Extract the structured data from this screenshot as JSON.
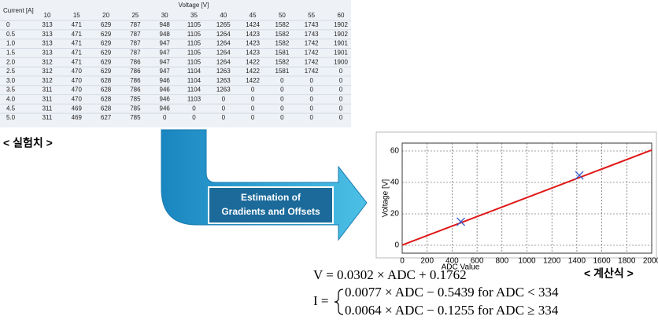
{
  "table": {
    "corner": "Current [A]",
    "group_header": "Voltage [V]",
    "columns": [
      "10",
      "15",
      "20",
      "25",
      "30",
      "35",
      "40",
      "45",
      "50",
      "55",
      "60"
    ],
    "rows": [
      [
        "0",
        "313",
        "471",
        "629",
        "787",
        "948",
        "1105",
        "1265",
        "1424",
        "1582",
        "1743",
        "1902"
      ],
      [
        "0.5",
        "313",
        "471",
        "629",
        "787",
        "948",
        "1105",
        "1264",
        "1423",
        "1582",
        "1743",
        "1902"
      ],
      [
        "1.0",
        "313",
        "471",
        "629",
        "787",
        "947",
        "1105",
        "1264",
        "1423",
        "1582",
        "1742",
        "1901"
      ],
      [
        "1.5",
        "313",
        "471",
        "629",
        "787",
        "947",
        "1105",
        "1264",
        "1423",
        "1581",
        "1742",
        "1901"
      ],
      [
        "2.0",
        "312",
        "471",
        "629",
        "786",
        "947",
        "1105",
        "1264",
        "1422",
        "1582",
        "1742",
        "1900"
      ],
      [
        "2.5",
        "312",
        "470",
        "629",
        "786",
        "947",
        "1104",
        "1263",
        "1422",
        "1581",
        "1742",
        "0"
      ],
      [
        "3.0",
        "312",
        "470",
        "628",
        "786",
        "946",
        "1104",
        "1263",
        "1422",
        "0",
        "0",
        "0"
      ],
      [
        "3.5",
        "311",
        "470",
        "628",
        "786",
        "946",
        "1104",
        "1263",
        "0",
        "0",
        "0",
        "0"
      ],
      [
        "4.0",
        "311",
        "470",
        "628",
        "785",
        "946",
        "1103",
        "0",
        "0",
        "0",
        "0",
        "0"
      ],
      [
        "4.5",
        "311",
        "469",
        "628",
        "785",
        "946",
        "0",
        "0",
        "0",
        "0",
        "0",
        "0"
      ],
      [
        "5.0",
        "311",
        "469",
        "627",
        "785",
        "0",
        "0",
        "0",
        "0",
        "0",
        "0",
        "0"
      ]
    ]
  },
  "table_caption": "< 실험치 >",
  "arrow_label": [
    "Estimation of",
    "Gradients and Offsets"
  ],
  "chart_data": {
    "type": "line",
    "xlabel": "ADC Value",
    "ylabel": "Voltage [V]",
    "xlim": [
      0,
      2000
    ],
    "xticks": [
      0,
      200,
      400,
      600,
      800,
      1000,
      1200,
      1400,
      1600,
      1800,
      2000
    ],
    "ylim": [
      -5,
      65
    ],
    "yticks": [
      0,
      20,
      40,
      60
    ],
    "grid": true,
    "series": [
      {
        "color": "#e01818",
        "x": [
          0,
          2000
        ],
        "values": [
          0.1762,
          60.5762
        ]
      },
      {
        "color": "#3a5fcd",
        "marker": "x",
        "x": [
          470,
          1420
        ],
        "values": [
          15,
          44.5
        ]
      }
    ]
  },
  "chart_caption": "< 계산식 >",
  "equations": {
    "v": "V = 0.0302 × ADC + 0.1762",
    "i_label": "I =",
    "i_cases": [
      "0.0077 × ADC − 0.5439 for ADC < 334",
      "0.0064 × ADC − 0.1255 for ADC ≥ 334"
    ]
  }
}
